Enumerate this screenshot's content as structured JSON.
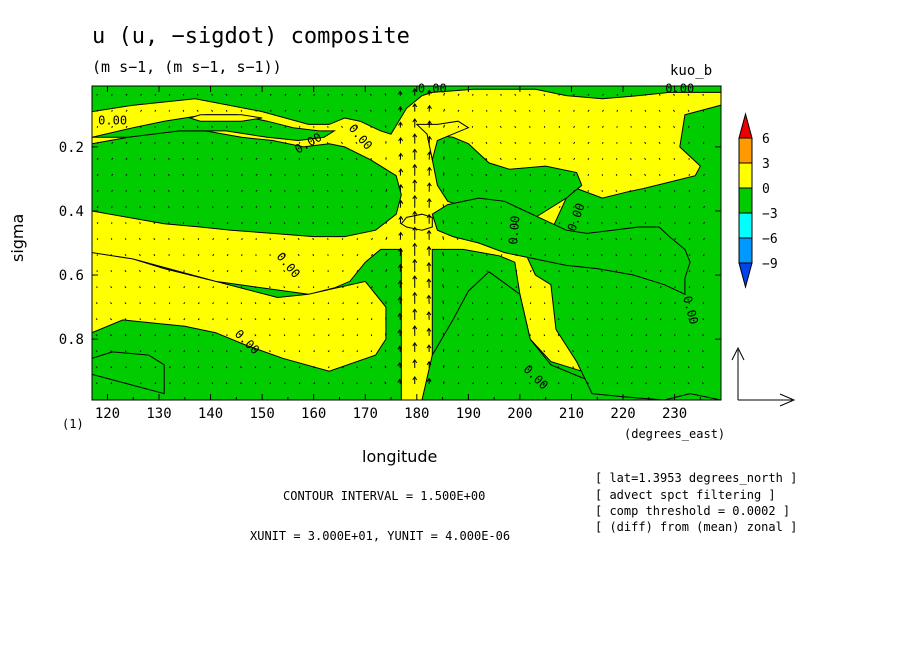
{
  "figure": {
    "title": "u (u, −sigdot) composite",
    "units": "(m s−1, (m s−1, s−1))",
    "tag": "kuo_b",
    "index": "(1)",
    "contour_interval": "CONTOUR INTERVAL = 1.500E+00",
    "vector_units": "XUNIT = 3.000E+01, YUNIT = 4.000E-06",
    "info": [
      "[ lat=1.3953 degrees_north ]",
      "[ advect spct filtering ]",
      "[ comp threshold = 0.0002 ]",
      "[ (diff) from (mean) zonal ]"
    ],
    "colors": {
      "c_0_3": "#ffff00",
      "c_m3_0": "#00cc00",
      "c_3_6": "#ff9900",
      "c_6_up": "#ee0000",
      "c_m6_m3": "#00ffff",
      "c_m9_m6": "#0099ff",
      "c_low": "#0044ee"
    }
  },
  "chart_data": {
    "type": "filled contour with vector field",
    "xlabel": "longitude",
    "xunits": "(degrees_east)",
    "ylabel": "sigma",
    "xlim": [
      117,
      239
    ],
    "ylim": [
      0.99,
      0.01
    ],
    "x_ticks": [
      120,
      130,
      140,
      150,
      160,
      170,
      180,
      190,
      200,
      210,
      220,
      230
    ],
    "y_ticks": [
      0.2,
      0.4,
      0.6,
      0.8
    ],
    "y_tick_labels": [
      "0.2",
      "0.4",
      "0.6",
      "0.8"
    ],
    "colorbar": {
      "levels": [
        6,
        3,
        0,
        -3,
        -6,
        -9
      ],
      "labels": [
        "6",
        "3",
        "0",
        "−3",
        "−6",
        "−9"
      ]
    },
    "contour_labels": [
      {
        "text": "0.00",
        "lon": 121,
        "sigma": 0.12,
        "angle": 0
      },
      {
        "text": "0.00",
        "lon": 183,
        "sigma": 0.02,
        "angle": 0
      },
      {
        "text": "0.00",
        "lon": 231,
        "sigma": 0.02,
        "angle": 0
      },
      {
        "text": "0.00",
        "lon": 159,
        "sigma": 0.19,
        "angle": -30
      },
      {
        "text": "0.00",
        "lon": 169,
        "sigma": 0.17,
        "angle": 50
      },
      {
        "text": "0.00",
        "lon": 155,
        "sigma": 0.57,
        "angle": 50
      },
      {
        "text": "0.00",
        "lon": 147,
        "sigma": 0.81,
        "angle": 45
      },
      {
        "text": "0.00",
        "lon": 199,
        "sigma": 0.46,
        "angle": -85
      },
      {
        "text": "0.00",
        "lon": 211,
        "sigma": 0.42,
        "angle": -70
      },
      {
        "text": "0.00",
        "lon": 203,
        "sigma": 0.92,
        "angle": 45
      },
      {
        "text": "0.00",
        "lon": 233,
        "sigma": 0.71,
        "angle": 75
      }
    ],
    "regions_below_zero": [
      [
        [
          117,
          0.09
        ],
        [
          125,
          0.07
        ],
        [
          137,
          0.05
        ],
        [
          150,
          0.09
        ],
        [
          159,
          0.13
        ],
        [
          163,
          0.13
        ],
        [
          166,
          0.11
        ],
        [
          169,
          0.12
        ],
        [
          173,
          0.15
        ],
        [
          175,
          0.16
        ],
        [
          178,
          0.08
        ],
        [
          181,
          0.04
        ],
        [
          183,
          0.03
        ],
        [
          191,
          0.02
        ],
        [
          203,
          0.02
        ],
        [
          209,
          0.04
        ],
        [
          216,
          0.05
        ],
        [
          223,
          0.04
        ],
        [
          229,
          0.03
        ],
        [
          239,
          0.03
        ],
        [
          239,
          0.01
        ],
        [
          117,
          0.01
        ]
      ],
      [
        [
          117,
          0.53
        ],
        [
          125,
          0.55
        ],
        [
          131,
          0.58
        ],
        [
          141,
          0.62
        ],
        [
          153,
          0.67
        ],
        [
          159,
          0.66
        ],
        [
          164,
          0.64
        ],
        [
          167,
          0.62
        ],
        [
          170,
          0.56
        ],
        [
          173,
          0.52
        ],
        [
          177,
          0.52
        ],
        [
          177,
          0.99
        ],
        [
          117,
          0.99
        ],
        [
          117,
          0.86
        ],
        [
          121,
          0.84
        ],
        [
          128,
          0.85
        ],
        [
          131,
          0.88
        ],
        [
          131,
          0.97
        ],
        [
          124,
          0.94
        ],
        [
          117,
          0.91
        ],
        [
          117,
          0.78
        ],
        [
          123,
          0.74
        ],
        [
          135,
          0.76
        ],
        [
          141,
          0.78
        ],
        [
          147,
          0.82
        ],
        [
          154,
          0.86
        ],
        [
          163,
          0.9
        ],
        [
          172,
          0.85
        ],
        [
          174,
          0.8
        ],
        [
          174,
          0.7
        ],
        [
          170,
          0.62
        ],
        [
          159,
          0.66
        ],
        [
          141,
          0.62
        ],
        [
          125,
          0.55
        ],
        [
          117,
          0.53
        ]
      ],
      [
        [
          183,
          0.52
        ],
        [
          189,
          0.52
        ],
        [
          196,
          0.54
        ],
        [
          199,
          0.56
        ],
        [
          200,
          0.66
        ],
        [
          202,
          0.8
        ],
        [
          206,
          0.87
        ],
        [
          212,
          0.9
        ],
        [
          218,
          0.92
        ],
        [
          225,
          0.93
        ],
        [
          232,
          0.95
        ],
        [
          239,
          0.94
        ],
        [
          239,
          0.99
        ],
        [
          183,
          0.99
        ]
      ],
      [
        [
          181,
          0.99
        ],
        [
          183,
          0.85
        ],
        [
          187,
          0.74
        ],
        [
          190,
          0.65
        ],
        [
          194,
          0.59
        ],
        [
          200,
          0.66
        ],
        [
          202,
          0.8
        ],
        [
          206,
          0.88
        ],
        [
          212,
          0.92
        ],
        [
          218,
          0.95
        ],
        [
          223,
          0.97
        ],
        [
          229,
          0.99
        ]
      ],
      [
        [
          201,
          0.53
        ],
        [
          205,
          0.5
        ],
        [
          209,
          0.36
        ],
        [
          211,
          0.33
        ],
        [
          216,
          0.36
        ],
        [
          221,
          0.34
        ],
        [
          224,
          0.33
        ],
        [
          229,
          0.31
        ],
        [
          234,
          0.29
        ],
        [
          235,
          0.26
        ],
        [
          231,
          0.2
        ],
        [
          232,
          0.1
        ],
        [
          239,
          0.07
        ],
        [
          239,
          0.99
        ],
        [
          233,
          0.97
        ],
        [
          228,
          0.99
        ],
        [
          220,
          0.98
        ],
        [
          214,
          0.97
        ],
        [
          211,
          0.87
        ],
        [
          207,
          0.77
        ],
        [
          206,
          0.63
        ],
        [
          203,
          0.6
        ]
      ],
      [
        [
          138,
          0.29
        ],
        [
          146,
          0.28
        ],
        [
          148,
          0.34
        ],
        [
          156,
          0.36
        ],
        [
          163,
          0.35
        ],
        [
          166,
          0.3
        ],
        [
          169,
          0.29
        ],
        [
          175,
          0.33
        ],
        [
          176,
          0.39
        ],
        [
          172,
          0.43
        ],
        [
          166,
          0.46
        ],
        [
          163,
          0.44
        ],
        [
          159,
          0.41
        ],
        [
          153,
          0.4
        ],
        [
          147,
          0.38
        ],
        [
          144,
          0.36
        ],
        [
          142,
          0.32
        ]
      ],
      [
        [
          182,
          0.16
        ],
        [
          187,
          0.17
        ],
        [
          190,
          0.19
        ],
        [
          194,
          0.25
        ],
        [
          198,
          0.27
        ],
        [
          205,
          0.26
        ],
        [
          211,
          0.28
        ],
        [
          212,
          0.32
        ],
        [
          209,
          0.36
        ],
        [
          205,
          0.4
        ],
        [
          201,
          0.44
        ],
        [
          198,
          0.44
        ],
        [
          193,
          0.43
        ],
        [
          190,
          0.39
        ],
        [
          186,
          0.37
        ],
        [
          184,
          0.32
        ],
        [
          183,
          0.24
        ]
      ],
      [
        [
          117,
          0.4
        ],
        [
          124,
          0.42
        ],
        [
          131,
          0.44
        ],
        [
          138,
          0.45
        ],
        [
          144,
          0.46
        ],
        [
          152,
          0.47
        ],
        [
          160,
          0.48
        ],
        [
          166,
          0.48
        ],
        [
          172,
          0.46
        ],
        [
          176,
          0.41
        ],
        [
          177,
          0.35
        ],
        [
          176,
          0.29
        ],
        [
          171,
          0.24
        ],
        [
          166,
          0.2
        ],
        [
          163,
          0.19
        ],
        [
          158,
          0.2
        ],
        [
          152,
          0.18
        ],
        [
          146,
          0.17
        ],
        [
          139,
          0.15
        ],
        [
          131,
          0.15
        ],
        [
          124,
          0.17
        ],
        [
          117,
          0.19
        ]
      ],
      [
        [
          183,
          0.41
        ],
        [
          186,
          0.38
        ],
        [
          192,
          0.36
        ],
        [
          197,
          0.37
        ],
        [
          201,
          0.4
        ],
        [
          205,
          0.43
        ],
        [
          209,
          0.46
        ],
        [
          213,
          0.47
        ],
        [
          218,
          0.46
        ],
        [
          223,
          0.45
        ],
        [
          227,
          0.45
        ],
        [
          229,
          0.48
        ],
        [
          232,
          0.52
        ],
        [
          233,
          0.56
        ],
        [
          232,
          0.61
        ],
        [
          232,
          0.66
        ],
        [
          228,
          0.63
        ],
        [
          222,
          0.6
        ],
        [
          215,
          0.58
        ],
        [
          209,
          0.57
        ],
        [
          203,
          0.55
        ],
        [
          197,
          0.53
        ],
        [
          192,
          0.5
        ],
        [
          187,
          0.48
        ],
        [
          184,
          0.46
        ]
      ],
      [
        [
          117,
          0.17
        ],
        [
          125,
          0.14
        ],
        [
          131,
          0.12
        ],
        [
          139,
          0.1
        ],
        [
          145,
          0.1
        ],
        [
          151,
          0.12
        ],
        [
          156,
          0.14
        ],
        [
          161,
          0.15
        ],
        [
          164,
          0.15
        ],
        [
          162,
          0.17
        ],
        [
          157,
          0.18
        ],
        [
          151,
          0.17
        ],
        [
          143,
          0.15
        ],
        [
          134,
          0.15
        ],
        [
          124,
          0.17
        ]
      ]
    ],
    "regions_above_zero": [
      [
        [
          138,
          0.1
        ],
        [
          146,
          0.1
        ],
        [
          150,
          0.11
        ],
        [
          146,
          0.12
        ],
        [
          138,
          0.12
        ],
        [
          136,
          0.11
        ]
      ],
      [
        [
          178,
          0.42
        ],
        [
          181,
          0.41
        ],
        [
          183,
          0.42
        ],
        [
          183,
          0.45
        ],
        [
          181,
          0.46
        ],
        [
          178,
          0.45
        ],
        [
          177,
          0.44
        ]
      ],
      [
        [
          180,
          0.13
        ],
        [
          184,
          0.13
        ],
        [
          188,
          0.12
        ],
        [
          190,
          0.14
        ],
        [
          187,
          0.16
        ],
        [
          184,
          0.18
        ],
        [
          183,
          0.24
        ],
        [
          182,
          0.16
        ]
      ]
    ]
  }
}
